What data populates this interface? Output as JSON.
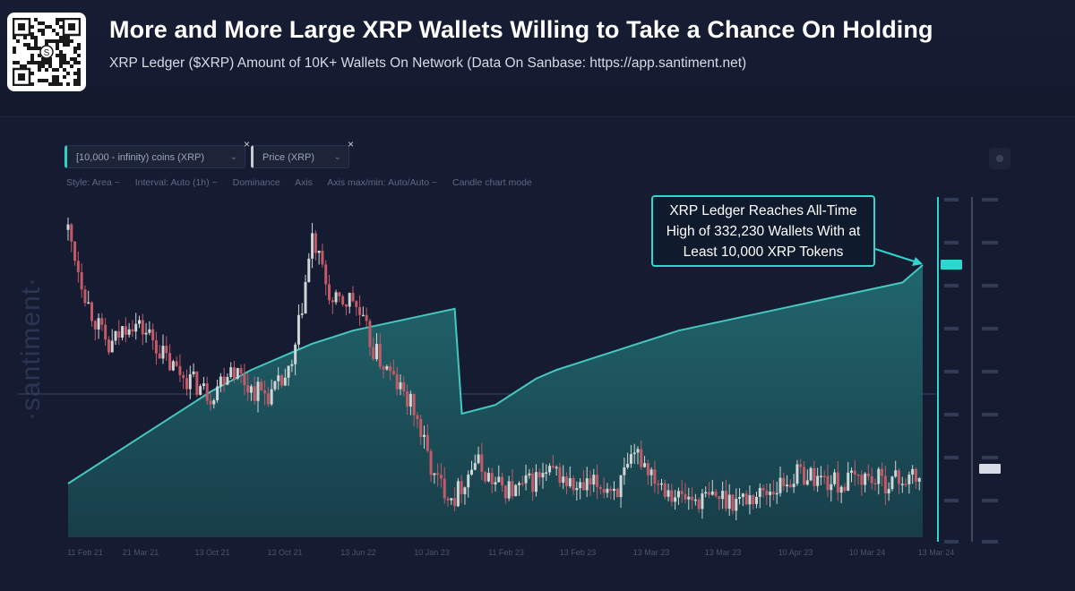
{
  "header": {
    "title": "More and More Large XRP Wallets Willing to Take a Chance On Holding",
    "subtitle": "XRP Ledger ($XRP) Amount of 10K+ Wallets On Network (Data On Sanbase: https://app.santiment.net)",
    "qr_center_glyph": "S"
  },
  "controls": {
    "metric1_label": "[10,000 - infinity) coins (XRP)",
    "metric2_label": "Price (XRP)",
    "close_glyph": "×",
    "caret_glyph": "⌄",
    "settings_items": [
      "Style: Area ~",
      "Interval: Auto (1h) ~",
      "Dominance",
      "Axis",
      "Axis max/min: Auto/Auto ~",
      "Candle chart mode"
    ]
  },
  "watermark": "·santiment·",
  "callout": {
    "lines": [
      "XRP Ledger Reaches All-Time",
      "High of 332,230 Wallets With at",
      "Least 10,000 XRP Tokens"
    ]
  },
  "colors": {
    "accent": "#2fd6d0",
    "area_fill": "#1f5a60",
    "area_line": "#46c8c0",
    "price_up": "#cfd6d6",
    "price_down": "#c25a68",
    "background": "#151b30"
  },
  "chart_data": {
    "type": "area",
    "series": [
      {
        "name": "[10,000 - infinity) coins (XRP)",
        "style": "area",
        "values": [
          0,
          0.06,
          0.12,
          0.18,
          0.24,
          0.3,
          0.36,
          0.42,
          0.47,
          0.52,
          0.56,
          0.6,
          0.64,
          0.67,
          0.7,
          0.72,
          0.74,
          0.76,
          0.78,
          0.8,
          0.32,
          0.36,
          0.42,
          0.48,
          0.52,
          0.55,
          0.58,
          0.61,
          0.64,
          0.67,
          0.7,
          0.72,
          0.74,
          0.76,
          0.78,
          0.8,
          0.82,
          0.84,
          0.86,
          0.88,
          0.9,
          0.92,
          1.0
        ]
      },
      {
        "name": "Price (XRP)",
        "style": "candles",
        "values": [
          0.95,
          0.7,
          0.55,
          0.65,
          0.6,
          0.5,
          0.45,
          0.4,
          0.5,
          0.42,
          0.4,
          0.48,
          0.92,
          0.7,
          0.72,
          0.55,
          0.45,
          0.35,
          0.12,
          0.06,
          0.18,
          0.1,
          0.08,
          0.12,
          0.14,
          0.08,
          0.1,
          0.09,
          0.2,
          0.12,
          0.06,
          0.05,
          0.06,
          0.05,
          0.07,
          0.1,
          0.14,
          0.12,
          0.1,
          0.13,
          0.11,
          0.12,
          0.12
        ]
      }
    ],
    "annotation": "XRP Ledger Reaches All-Time High of 332,230 Wallets With at Least 10,000 XRP Tokens",
    "grid": false,
    "legend": "top-left"
  }
}
